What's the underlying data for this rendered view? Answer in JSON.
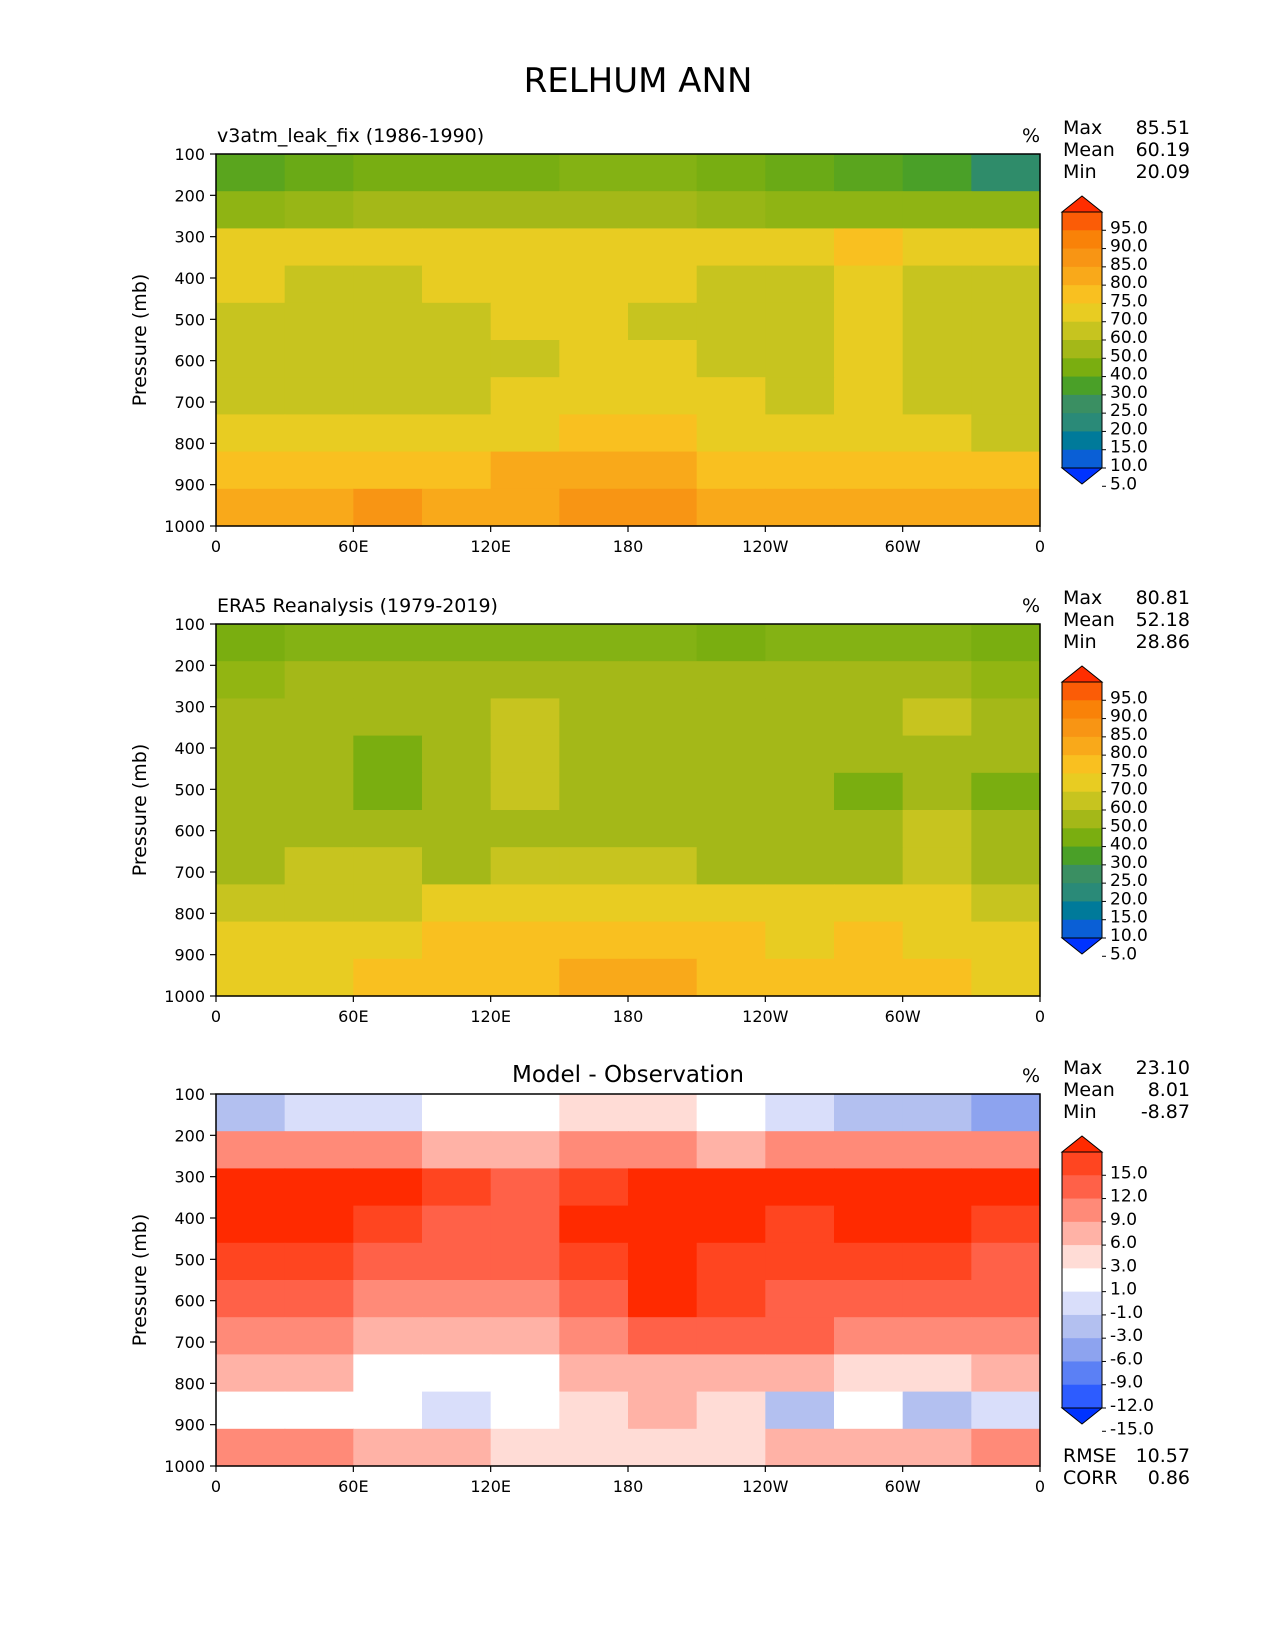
{
  "figure_title": "RELHUM ANN",
  "chart_data": [
    {
      "type": "heatmap",
      "subtitle": "v3atm_leak_fix (1986-1990)",
      "units": "%",
      "ylabel": "Pressure (mb)",
      "xlabel": "",
      "x_ticks": [
        "0",
        "60E",
        "120E",
        "180",
        "120W",
        "60W",
        "0"
      ],
      "y_ticks": [
        "100",
        "200",
        "300",
        "400",
        "500",
        "600",
        "700",
        "800",
        "900",
        "1000"
      ],
      "ylim": [
        1000,
        100
      ],
      "xlim": [
        0,
        360
      ],
      "stats": {
        "max_label": "Max",
        "max": "85.51",
        "mean_label": "Mean",
        "mean": "60.19",
        "min_label": "Min",
        "min": "20.09"
      },
      "colorbar": {
        "levels": [
          "5.0",
          "10.0",
          "15.0",
          "20.0",
          "25.0",
          "30.0",
          "40.0",
          "50.0",
          "60.0",
          "70.0",
          "75.0",
          "80.0",
          "85.0",
          "90.0",
          "95.0"
        ],
        "colors": [
          "#0033ff",
          "#0a5fd6",
          "#007a9a",
          "#2a8a78",
          "#3a8f62",
          "#4aa028",
          "#7aae10",
          "#a4b818",
          "#c7c41f",
          "#e8cc22",
          "#f9c020",
          "#f9a91a",
          "#f89514",
          "#f98208",
          "#fb5c06",
          "#ff2d00"
        ]
      },
      "rows": [
        [
          "#5aa51e",
          "#6aaa16",
          "#78ae12",
          "#78ae12",
          "#78ae12",
          "#84b214",
          "#84b214",
          "#78ae12",
          "#6aaa16",
          "#5aa51e",
          "#4aa028",
          "#2f8c6a"
        ],
        [
          "#8fb414",
          "#98b616",
          "#a4b818",
          "#a4b818",
          "#a4b818",
          "#a4b818",
          "#a4b818",
          "#98b616",
          "#8fb414",
          "#8fb414",
          "#8fb414",
          "#8fb414"
        ],
        [
          "#e8cc22",
          "#e8cc22",
          "#e8cc22",
          "#e8cc22",
          "#e8cc22",
          "#e8cc22",
          "#e8cc22",
          "#e8cc22",
          "#e8cc22",
          "#f9c020",
          "#e8cc22",
          "#e8cc22"
        ],
        [
          "#e8cc22",
          "#c7c41f",
          "#c7c41f",
          "#e8cc22",
          "#e8cc22",
          "#e8cc22",
          "#e8cc22",
          "#c7c41f",
          "#c7c41f",
          "#e8cc22",
          "#c7c41f",
          "#c7c41f"
        ],
        [
          "#c7c41f",
          "#c7c41f",
          "#c7c41f",
          "#c7c41f",
          "#e8cc22",
          "#e8cc22",
          "#c7c41f",
          "#c7c41f",
          "#c7c41f",
          "#e8cc22",
          "#c7c41f",
          "#c7c41f"
        ],
        [
          "#c7c41f",
          "#c7c41f",
          "#c7c41f",
          "#c7c41f",
          "#c7c41f",
          "#e8cc22",
          "#e8cc22",
          "#c7c41f",
          "#c7c41f",
          "#e8cc22",
          "#c7c41f",
          "#c7c41f"
        ],
        [
          "#c7c41f",
          "#c7c41f",
          "#c7c41f",
          "#c7c41f",
          "#e8cc22",
          "#e8cc22",
          "#e8cc22",
          "#e8cc22",
          "#c7c41f",
          "#e8cc22",
          "#c7c41f",
          "#c7c41f"
        ],
        [
          "#e8cc22",
          "#e8cc22",
          "#e8cc22",
          "#e8cc22",
          "#e8cc22",
          "#f9c020",
          "#f9c020",
          "#e8cc22",
          "#e8cc22",
          "#e8cc22",
          "#e8cc22",
          "#c7c41f"
        ],
        [
          "#f9c020",
          "#f9c020",
          "#f9c020",
          "#f9c020",
          "#f9a91a",
          "#f9a91a",
          "#f9a91a",
          "#f9c020",
          "#f9c020",
          "#f9c020",
          "#f9c020",
          "#f9c020"
        ],
        [
          "#f9a91a",
          "#f9a91a",
          "#f89514",
          "#f9a91a",
          "#f9a91a",
          "#f89514",
          "#f89514",
          "#f9a91a",
          "#f9a91a",
          "#f9a91a",
          "#f9a91a",
          "#f9a91a"
        ]
      ]
    },
    {
      "type": "heatmap",
      "subtitle": "ERA5 Reanalysis (1979-2019)",
      "units": "%",
      "ylabel": "Pressure (mb)",
      "xlabel": "",
      "x_ticks": [
        "0",
        "60E",
        "120E",
        "180",
        "120W",
        "60W",
        "0"
      ],
      "y_ticks": [
        "100",
        "200",
        "300",
        "400",
        "500",
        "600",
        "700",
        "800",
        "900",
        "1000"
      ],
      "ylim": [
        1000,
        100
      ],
      "xlim": [
        0,
        360
      ],
      "stats": {
        "max_label": "Max",
        "max": "80.81",
        "mean_label": "Mean",
        "mean": "52.18",
        "min_label": "Min",
        "min": "28.86"
      },
      "colorbar": {
        "levels": [
          "5.0",
          "10.0",
          "15.0",
          "20.0",
          "25.0",
          "30.0",
          "40.0",
          "50.0",
          "60.0",
          "70.0",
          "75.0",
          "80.0",
          "85.0",
          "90.0",
          "95.0"
        ],
        "colors": [
          "#0033ff",
          "#0a5fd6",
          "#007a9a",
          "#2a8a78",
          "#3a8f62",
          "#4aa028",
          "#7aae10",
          "#a4b818",
          "#c7c41f",
          "#e8cc22",
          "#f9c020",
          "#f9a91a",
          "#f89514",
          "#f98208",
          "#fb5c06",
          "#ff2d00"
        ]
      },
      "rows": [
        [
          "#7aae10",
          "#84b214",
          "#84b214",
          "#84b214",
          "#84b214",
          "#84b214",
          "#84b214",
          "#7aae10",
          "#84b214",
          "#84b214",
          "#84b214",
          "#7aae10"
        ],
        [
          "#92b512",
          "#a4b818",
          "#a4b818",
          "#a4b818",
          "#a4b818",
          "#a4b818",
          "#a4b818",
          "#a4b818",
          "#a4b818",
          "#a4b818",
          "#a4b818",
          "#92b512"
        ],
        [
          "#a4b818",
          "#a4b818",
          "#a4b818",
          "#a4b818",
          "#c7c41f",
          "#a4b818",
          "#a4b818",
          "#a4b818",
          "#a4b818",
          "#a4b818",
          "#c7c41f",
          "#a4b818"
        ],
        [
          "#a4b818",
          "#a4b818",
          "#7aae10",
          "#a4b818",
          "#c7c41f",
          "#a4b818",
          "#a4b818",
          "#a4b818",
          "#a4b818",
          "#a4b818",
          "#a4b818",
          "#a4b818"
        ],
        [
          "#a4b818",
          "#a4b818",
          "#7aae10",
          "#a4b818",
          "#c7c41f",
          "#a4b818",
          "#a4b818",
          "#a4b818",
          "#a4b818",
          "#7aae10",
          "#a4b818",
          "#7aae10"
        ],
        [
          "#a4b818",
          "#a4b818",
          "#a4b818",
          "#a4b818",
          "#a4b818",
          "#a4b818",
          "#a4b818",
          "#a4b818",
          "#a4b818",
          "#a4b818",
          "#c7c41f",
          "#a4b818"
        ],
        [
          "#a4b818",
          "#c7c41f",
          "#c7c41f",
          "#a4b818",
          "#c7c41f",
          "#c7c41f",
          "#c7c41f",
          "#a4b818",
          "#a4b818",
          "#a4b818",
          "#c7c41f",
          "#a4b818"
        ],
        [
          "#c7c41f",
          "#c7c41f",
          "#c7c41f",
          "#e8cc22",
          "#e8cc22",
          "#e8cc22",
          "#e8cc22",
          "#e8cc22",
          "#e8cc22",
          "#e8cc22",
          "#e8cc22",
          "#c7c41f"
        ],
        [
          "#e8cc22",
          "#e8cc22",
          "#e8cc22",
          "#f9c020",
          "#f9c020",
          "#f9c020",
          "#f9c020",
          "#f9c020",
          "#e8cc22",
          "#f9c020",
          "#e8cc22",
          "#e8cc22"
        ],
        [
          "#e8cc22",
          "#e8cc22",
          "#f9c020",
          "#f9c020",
          "#f9c020",
          "#f9a91a",
          "#f9a91a",
          "#f9c020",
          "#f9c020",
          "#f9c020",
          "#f9c020",
          "#e8cc22"
        ]
      ]
    },
    {
      "type": "heatmap",
      "subtitle": "Model - Observation",
      "units": "%",
      "ylabel": "Pressure (mb)",
      "xlabel": "",
      "x_ticks": [
        "0",
        "60E",
        "120E",
        "180",
        "120W",
        "60W",
        "0"
      ],
      "y_ticks": [
        "100",
        "200",
        "300",
        "400",
        "500",
        "600",
        "700",
        "800",
        "900",
        "1000"
      ],
      "ylim": [
        1000,
        100
      ],
      "xlim": [
        0,
        360
      ],
      "stats": {
        "max_label": "Max",
        "max": "23.10",
        "mean_label": "Mean",
        "mean": "8.01",
        "min_label": "Min",
        "min": "-8.87"
      },
      "metrics": {
        "rmse_label": "RMSE",
        "rmse": "10.57",
        "corr_label": "CORR",
        "corr": "0.86"
      },
      "colorbar": {
        "levels": [
          "-15.0",
          "-12.0",
          "-9.0",
          "-6.0",
          "-3.0",
          "-1.0",
          "1.0",
          "3.0",
          "6.0",
          "9.0",
          "12.0",
          "15.0"
        ],
        "colors": [
          "#0033ff",
          "#2d5cff",
          "#5b80f5",
          "#8da3ef",
          "#b3c0f0",
          "#d9defa",
          "#ffffff",
          "#ffdcd6",
          "#ffb2a6",
          "#ff8a78",
          "#ff6148",
          "#ff4520",
          "#ff2a00"
        ]
      },
      "rows": [
        [
          "#b3c0f0",
          "#d9defa",
          "#d9defa",
          "#ffffff",
          "#ffffff",
          "#ffdcd6",
          "#ffdcd6",
          "#ffffff",
          "#d9defa",
          "#b3c0f0",
          "#b3c0f0",
          "#8da3ef"
        ],
        [
          "#ff8a78",
          "#ff8a78",
          "#ff8a78",
          "#ffb2a6",
          "#ffb2a6",
          "#ff8a78",
          "#ff8a78",
          "#ffb2a6",
          "#ff8a78",
          "#ff8a78",
          "#ff8a78",
          "#ff8a78"
        ],
        [
          "#ff2a00",
          "#ff2a00",
          "#ff2a00",
          "#ff4520",
          "#ff6148",
          "#ff4520",
          "#ff2a00",
          "#ff2a00",
          "#ff2a00",
          "#ff2a00",
          "#ff2a00",
          "#ff2a00"
        ],
        [
          "#ff2a00",
          "#ff2a00",
          "#ff4520",
          "#ff6148",
          "#ff6148",
          "#ff2a00",
          "#ff2a00",
          "#ff2a00",
          "#ff4520",
          "#ff2a00",
          "#ff2a00",
          "#ff4520"
        ],
        [
          "#ff4520",
          "#ff4520",
          "#ff6148",
          "#ff6148",
          "#ff6148",
          "#ff4520",
          "#ff2a00",
          "#ff4520",
          "#ff4520",
          "#ff4520",
          "#ff4520",
          "#ff6148"
        ],
        [
          "#ff6148",
          "#ff6148",
          "#ff8a78",
          "#ff8a78",
          "#ff8a78",
          "#ff6148",
          "#ff2a00",
          "#ff4520",
          "#ff6148",
          "#ff6148",
          "#ff6148",
          "#ff6148"
        ],
        [
          "#ff8a78",
          "#ff8a78",
          "#ffb2a6",
          "#ffb2a6",
          "#ffb2a6",
          "#ff8a78",
          "#ff6148",
          "#ff6148",
          "#ff6148",
          "#ff8a78",
          "#ff8a78",
          "#ff8a78"
        ],
        [
          "#ffb2a6",
          "#ffb2a6",
          "#ffffff",
          "#ffffff",
          "#ffffff",
          "#ffb2a6",
          "#ffb2a6",
          "#ffb2a6",
          "#ffb2a6",
          "#ffdcd6",
          "#ffdcd6",
          "#ffb2a6"
        ],
        [
          "#ffffff",
          "#ffffff",
          "#ffffff",
          "#d9defa",
          "#ffffff",
          "#ffdcd6",
          "#ffb2a6",
          "#ffdcd6",
          "#b3c0f0",
          "#ffffff",
          "#b3c0f0",
          "#d9defa"
        ],
        [
          "#ff8a78",
          "#ff8a78",
          "#ffb2a6",
          "#ffb2a6",
          "#ffdcd6",
          "#ffdcd6",
          "#ffdcd6",
          "#ffdcd6",
          "#ffb2a6",
          "#ffb2a6",
          "#ffb2a6",
          "#ff8a78"
        ]
      ]
    }
  ]
}
